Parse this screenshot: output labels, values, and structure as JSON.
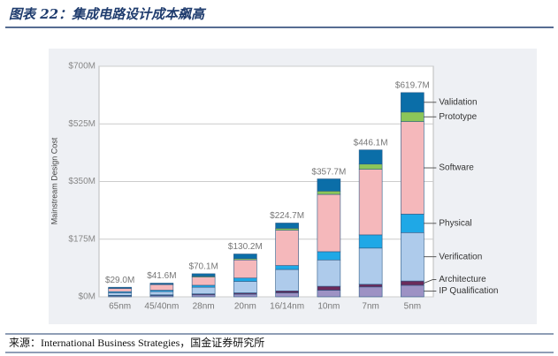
{
  "title": "图表 22：集成电路设计成本飙高",
  "source": "来源：International Business Strategies，国金证券研究所",
  "chart_data": {
    "type": "stacked_bar",
    "y_label": "Mainstream Design Cost",
    "categories": [
      "65nm",
      "45/40nm",
      "28nm",
      "20nm",
      "16/14nm",
      "10nm",
      "7nm",
      "5nm"
    ],
    "ylim": [
      0,
      700
    ],
    "yticks": [
      {
        "value": 0,
        "label": "$0M"
      },
      {
        "value": 175,
        "label": "$175M"
      },
      {
        "value": 350,
        "label": "$350M"
      },
      {
        "value": 525,
        "label": "$525M"
      },
      {
        "value": 700,
        "label": "$700M"
      }
    ],
    "grid": true,
    "series": [
      {
        "name": "IP Qualification",
        "color": "#9d92c4",
        "values": [
          3,
          4,
          6,
          8,
          12,
          20,
          30,
          35
        ]
      },
      {
        "name": "Architecture",
        "color": "#6b2a5a",
        "values": [
          1.5,
          2,
          3,
          4,
          6,
          12,
          8,
          13
        ]
      },
      {
        "name": "Verification",
        "color": "#aecbeb",
        "values": [
          8,
          10,
          20,
          35,
          65,
          80,
          110,
          147
        ]
      },
      {
        "name": "Physical",
        "color": "#1fa8e6",
        "values": [
          3,
          4,
          6,
          10,
          12,
          25,
          40,
          56
        ]
      },
      {
        "name": "Software",
        "color": "#f5b8bb",
        "values": [
          10,
          17,
          25,
          55,
          107,
          174,
          199,
          281
        ]
      },
      {
        "name": "Prototype",
        "color": "#8cc659",
        "values": [
          1,
          1.5,
          3,
          4,
          6,
          10,
          16,
          29
        ]
      },
      {
        "name": "Validation",
        "color": "#0b6ea8",
        "values": [
          2.5,
          3,
          7,
          14,
          16,
          37,
          43,
          59
        ]
      }
    ],
    "totals": {
      "values": [
        29.0,
        41.6,
        70.1,
        130.2,
        224.7,
        357.7,
        446.1,
        619.7
      ],
      "value_labels": [
        "$29.0M",
        "$41.6M",
        "$70.1M",
        "$130.2M",
        "$224.7M",
        "$357.7M",
        "$446.1M",
        "$619.7M"
      ]
    }
  }
}
